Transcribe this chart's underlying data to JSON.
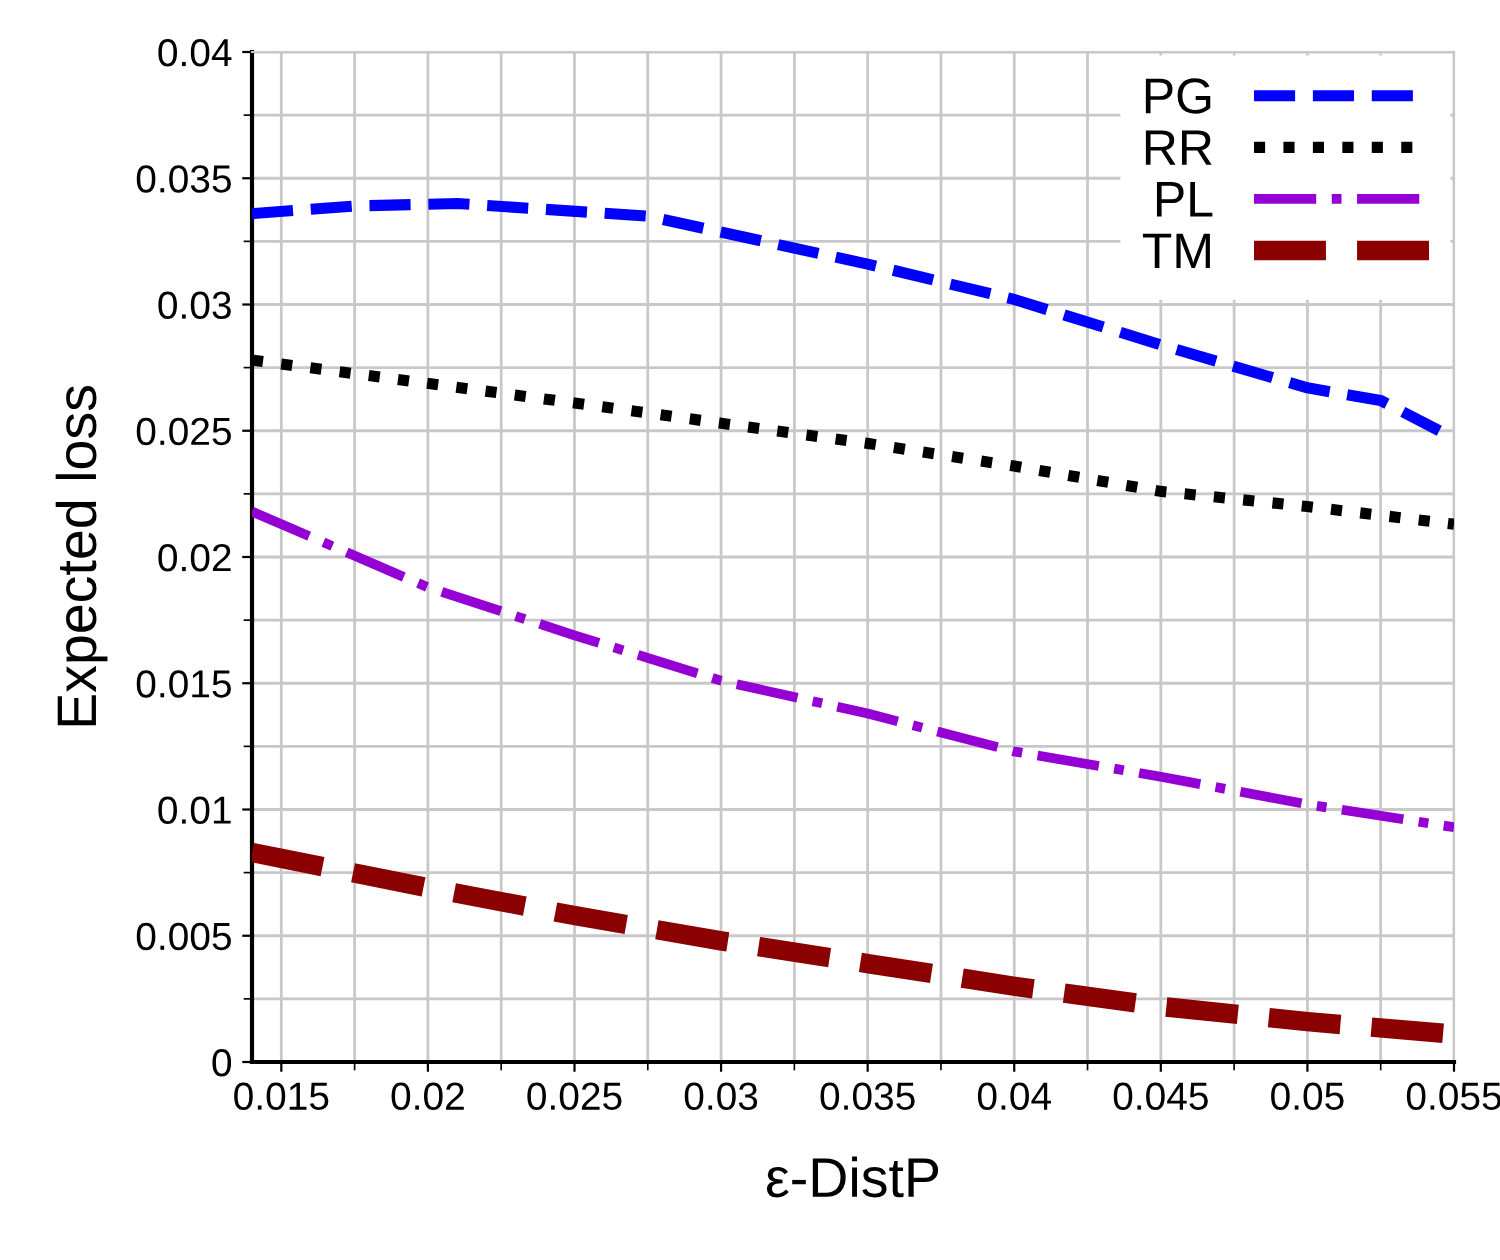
{
  "chart_data": {
    "type": "line",
    "xlabel": "ε-DistP",
    "ylabel": "Expected loss",
    "xlim": [
      0.014,
      0.055
    ],
    "xticks": [
      0.015,
      0.02,
      0.025,
      0.03,
      0.035,
      0.04,
      0.045,
      0.05,
      0.055
    ],
    "ylim": [
      0,
      0.04
    ],
    "yticks": [
      0,
      0.005,
      0.01,
      0.015,
      0.02,
      0.025,
      0.03,
      0.035,
      0.04
    ],
    "grid": true,
    "legend": "top right",
    "series": [
      {
        "name": "PG",
        "color": "#0000ff",
        "line_style": "dashed",
        "x": [
          0.014,
          0.0175,
          0.021,
          0.0275,
          0.035,
          0.04,
          0.045,
          0.05,
          0.0525,
          0.055
        ],
        "values": [
          0.0336,
          0.0339,
          0.034,
          0.0335,
          0.0316,
          0.0302,
          0.0284,
          0.0267,
          0.0262,
          0.0247
        ]
      },
      {
        "name": "RR",
        "color": "#000000",
        "line_style": "dotted",
        "x": [
          0.014,
          0.025,
          0.03,
          0.035,
          0.04,
          0.045,
          0.05,
          0.055
        ],
        "values": [
          0.0278,
          0.0261,
          0.0253,
          0.0245,
          0.0236,
          0.0226,
          0.022,
          0.0213
        ]
      },
      {
        "name": "PL",
        "color": "#9400d3",
        "line_style": "dashdot",
        "x": [
          0.014,
          0.02,
          0.025,
          0.03,
          0.035,
          0.04,
          0.045,
          0.05,
          0.055
        ],
        "values": [
          0.0218,
          0.0188,
          0.0169,
          0.0151,
          0.0138,
          0.0123,
          0.0113,
          0.0102,
          0.0093
        ]
      },
      {
        "name": "TM",
        "color": "#8b0000",
        "line_style": "dashed",
        "x": [
          0.014,
          0.02,
          0.025,
          0.03,
          0.035,
          0.04,
          0.045,
          0.05,
          0.055
        ],
        "values": [
          0.0083,
          0.0069,
          0.0058,
          0.0048,
          0.0039,
          0.003,
          0.0022,
          0.0016,
          0.0011
        ]
      }
    ]
  }
}
